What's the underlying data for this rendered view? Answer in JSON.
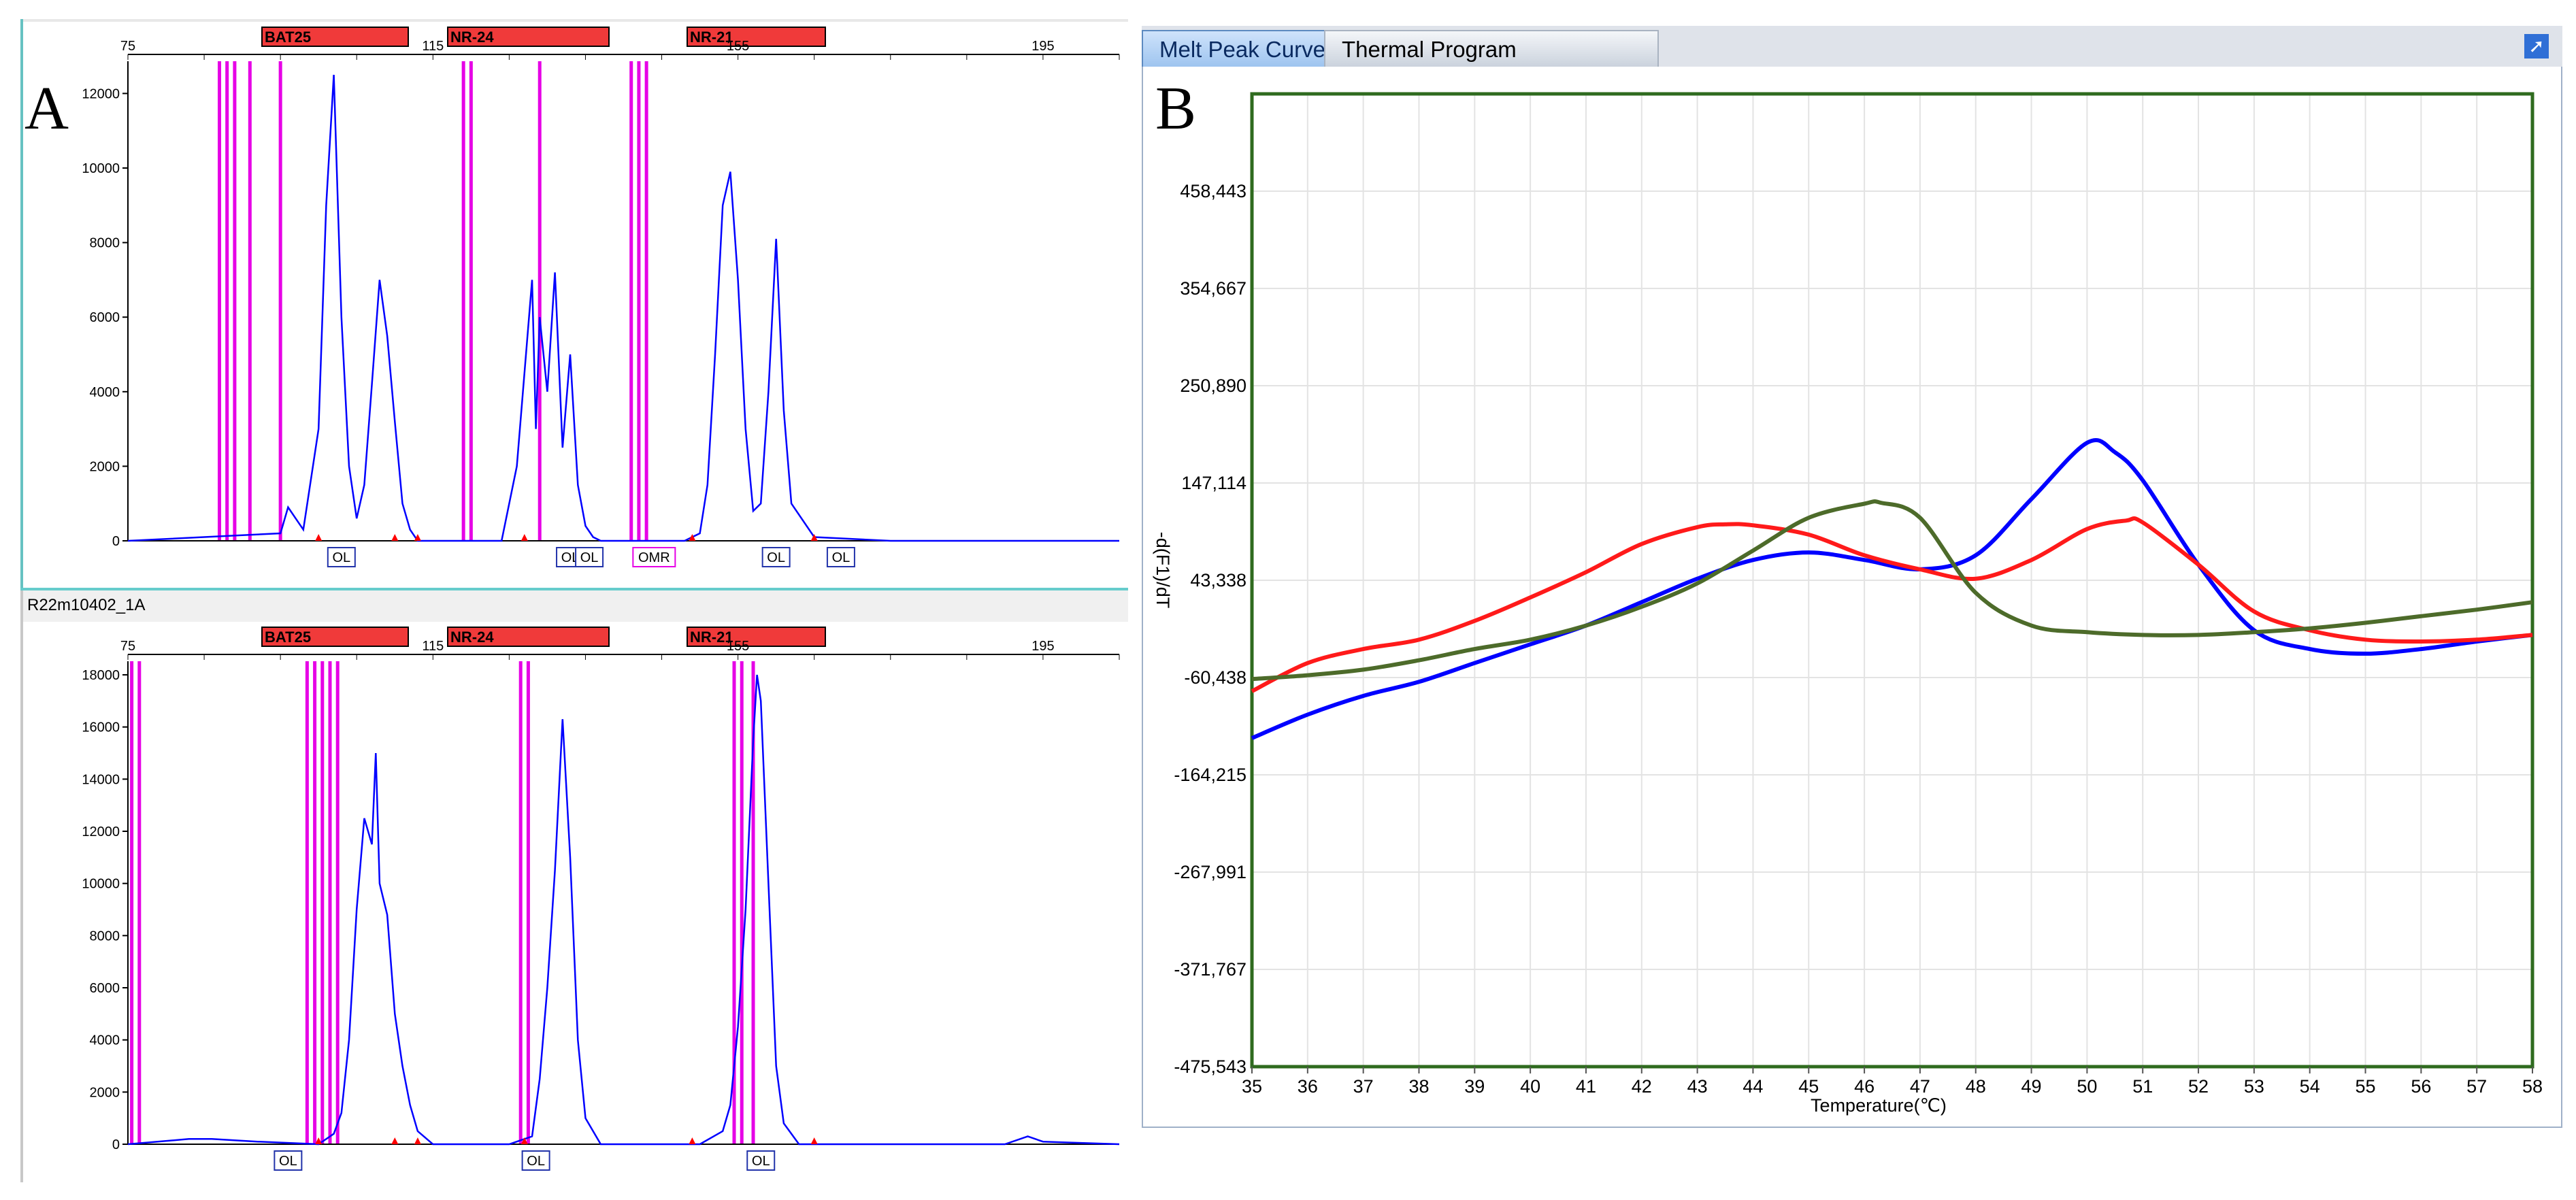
{
  "panel_labels": {
    "a": "A",
    "b": "B"
  },
  "fragment_panel": {
    "track_name": "R22m10402_1A",
    "markers": [
      "BAT25",
      "NR-24",
      "NR-21"
    ],
    "size_ticks": [
      "75",
      "115",
      "155",
      "195"
    ],
    "top": {
      "y_ticks": [
        "0",
        "2000",
        "4000",
        "6000",
        "8000",
        "10000",
        "12000"
      ],
      "peak_labels": [
        "OL",
        "OL",
        "OL",
        "OMR",
        "OL",
        "OL"
      ]
    },
    "bottom": {
      "y_ticks": [
        "0",
        "2000",
        "4000",
        "6000",
        "8000",
        "10000",
        "12000",
        "14000",
        "16000",
        "18000"
      ],
      "peak_labels": [
        "OL",
        "OL",
        "OL"
      ]
    }
  },
  "melt_panel": {
    "tabs": {
      "active": "Melt Peak Curve",
      "inactive": "Thermal Program"
    },
    "pin_icon": "pin-icon"
  },
  "colors": {
    "blue": "#0000ff",
    "red": "#ff1a1a",
    "olive": "#4d6b2a",
    "magenta": "#e600e6",
    "marker_bar": "#f03a3a",
    "frame": "#2f6b1f"
  },
  "chart_data": [
    {
      "type": "line",
      "title": "",
      "xlabel": "",
      "ylabel": "",
      "xlim": [
        75,
        205
      ],
      "ylim": [
        0,
        12500
      ],
      "grid": false,
      "series": [
        {
          "x": [
            75,
            90,
            95,
            96,
            98,
            100,
            101,
            102,
            103,
            104,
            105,
            106,
            107,
            108,
            109,
            110,
            111,
            112,
            113,
            115,
            120,
            124,
            126,
            127,
            128,
            128.5,
            129,
            130,
            131,
            132,
            133,
            134,
            135,
            136,
            137,
            140,
            145,
            148,
            150,
            151,
            152,
            153,
            154,
            155,
            156,
            157,
            158,
            159,
            160,
            161,
            162,
            165,
            175,
            190,
            205
          ],
          "values": [
            0,
            150,
            200,
            900,
            300,
            3000,
            9000,
            12500,
            6000,
            2000,
            600,
            1500,
            4200,
            7000,
            5500,
            3200,
            1000,
            300,
            0,
            0,
            0,
            0,
            2000,
            4500,
            7000,
            3000,
            6000,
            4000,
            7200,
            2500,
            5000,
            1500,
            400,
            100,
            0,
            0,
            0,
            0,
            200,
            1500,
            5000,
            9000,
            9900,
            7000,
            3000,
            800,
            1000,
            4000,
            8100,
            3500,
            1000,
            100,
            0,
            0,
            0
          ]
        }
      ]
    },
    {
      "type": "line",
      "title": "",
      "xlabel": "",
      "ylabel": "",
      "xlim": [
        75,
        205
      ],
      "ylim": [
        0,
        18000
      ],
      "grid": false,
      "series": [
        {
          "x": [
            75,
            83,
            86,
            92,
            100,
            102,
            103,
            104,
            105,
            106,
            107,
            107.5,
            108,
            109,
            110,
            111,
            112,
            113,
            115,
            125,
            128,
            129,
            130,
            131,
            132,
            133,
            134,
            135,
            137,
            140,
            150,
            153,
            154,
            155,
            156,
            157,
            157.5,
            158,
            159,
            160,
            161,
            163,
            175,
            190,
            193,
            195,
            205
          ],
          "values": [
            0,
            200,
            200,
            100,
            0,
            400,
            1200,
            4000,
            9000,
            12500,
            11500,
            15000,
            10000,
            8800,
            5000,
            3000,
            1500,
            500,
            0,
            0,
            300,
            2500,
            6000,
            10500,
            16300,
            11000,
            4000,
            1000,
            0,
            0,
            0,
            500,
            1500,
            4500,
            9000,
            15500,
            18000,
            17000,
            10000,
            3000,
            800,
            0,
            0,
            0,
            300,
            100,
            0
          ]
        }
      ]
    },
    {
      "type": "line",
      "title": "",
      "xlabel": "Temperature(℃)",
      "ylabel": "-d(F1)/dT",
      "xlim": [
        35,
        58
      ],
      "ylim": [
        -475543,
        562219
      ],
      "grid": true,
      "x_ticks": [
        35,
        36,
        37,
        38,
        39,
        40,
        41,
        42,
        43,
        44,
        45,
        46,
        47,
        48,
        49,
        50,
        51,
        52,
        53,
        54,
        55,
        56,
        57,
        58
      ],
      "y_ticks": [
        "458,443",
        "354,667",
        "250,890",
        "147,114",
        "43,338",
        "-60,438",
        "-164,215",
        "-267,991",
        "-371,767",
        "-475,543"
      ],
      "series": [
        {
          "color": "blue",
          "x": [
            35,
            36,
            37,
            38,
            39,
            40,
            41,
            42,
            43,
            44,
            45,
            46,
            47,
            48,
            49,
            50,
            50.5,
            51,
            52,
            53,
            54,
            55,
            56,
            57,
            58
          ],
          "values": [
            -125000,
            -100000,
            -80000,
            -65000,
            -45000,
            -25000,
            -5000,
            20000,
            45000,
            65000,
            73000,
            65000,
            55000,
            70000,
            130000,
            190000,
            180000,
            150000,
            60000,
            -10000,
            -30000,
            -35000,
            -30000,
            -22000,
            -15000
          ]
        },
        {
          "color": "red",
          "x": [
            35,
            36,
            37,
            38,
            39,
            40,
            41,
            42,
            43,
            43.5,
            44,
            45,
            46,
            47,
            48,
            49,
            50,
            50.7,
            51,
            52,
            53,
            54,
            55,
            56,
            57,
            58
          ],
          "values": [
            -75000,
            -45000,
            -30000,
            -20000,
            0,
            25000,
            52000,
            82000,
            100000,
            103000,
            102000,
            92000,
            70000,
            55000,
            45000,
            65000,
            98000,
            107000,
            105000,
            60000,
            10000,
            -10000,
            -20000,
            -22000,
            -20000,
            -15000
          ]
        },
        {
          "color": "olive",
          "x": [
            35,
            36,
            37,
            38,
            39,
            40,
            41,
            42,
            43,
            44,
            45,
            46,
            46.3,
            47,
            48,
            49,
            50,
            51,
            52,
            53,
            54,
            55,
            56,
            57,
            58
          ],
          "values": [
            -62000,
            -58000,
            -52000,
            -42000,
            -30000,
            -20000,
            -5000,
            15000,
            40000,
            75000,
            110000,
            125000,
            126000,
            110000,
            30000,
            -5000,
            -12000,
            -15000,
            -15000,
            -12000,
            -8000,
            -2000,
            5000,
            12000,
            20000
          ]
        }
      ]
    }
  ]
}
